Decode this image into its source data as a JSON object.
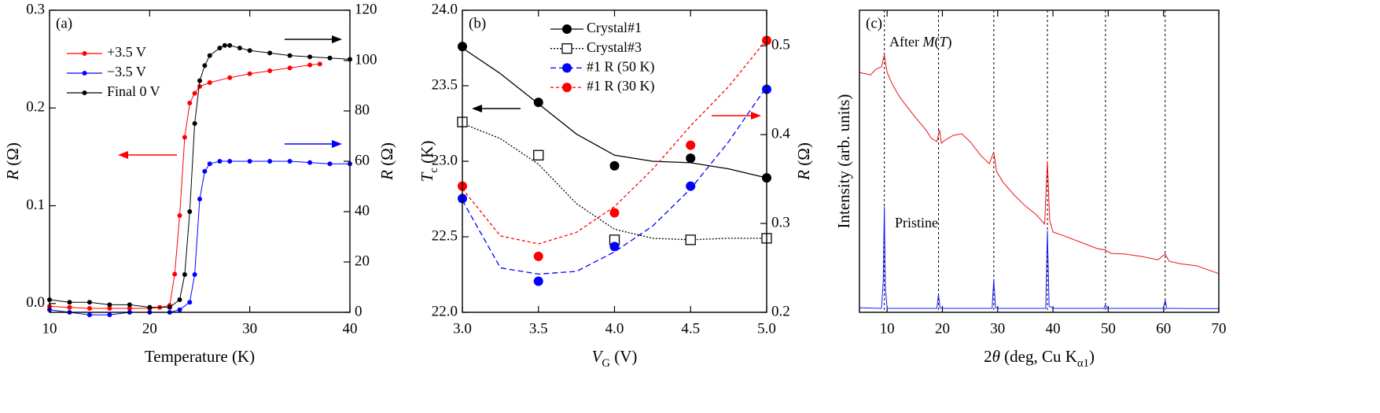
{
  "chart_data": [
    {
      "type": "line",
      "label": "(a)",
      "x_label": [
        {
          "text": "Temperature (K)"
        }
      ],
      "y_label": [
        {
          "text": "R",
          "italic": true
        },
        {
          "text": " (Ω)"
        }
      ],
      "y2_label": [
        {
          "text": "R",
          "italic": true
        },
        {
          "text": " (Ω)"
        }
      ],
      "xlim": [
        10,
        40
      ],
      "xticks": [
        10,
        20,
        30,
        40
      ],
      "ylim": [
        -0.009,
        0.3
      ],
      "yticks": [
        {
          "value": 0,
          "label": "0.0"
        },
        0.1,
        0.2,
        0.3
      ],
      "y2lim": [
        0,
        120
      ],
      "y2ticks": [
        0,
        20,
        40,
        60,
        80,
        100,
        120
      ],
      "series": [
        {
          "name": "+3.5 V",
          "color": "#ff0000",
          "axis": "y",
          "marker": "circle",
          "x": [
            10,
            12,
            14,
            16,
            18,
            20,
            21,
            22,
            22.5,
            23,
            23.5,
            24,
            24.5,
            25,
            26,
            28,
            30,
            32,
            34,
            36,
            37
          ],
          "values": [
            -0.003,
            -0.004,
            -0.005,
            -0.005,
            -0.005,
            -0.005,
            -0.004,
            -0.002,
            0.03,
            0.09,
            0.17,
            0.205,
            0.215,
            0.222,
            0.226,
            0.231,
            0.235,
            0.238,
            0.241,
            0.244,
            0.245
          ]
        },
        {
          "name": "−3.5 V",
          "color": "#0000ff",
          "axis": "y2",
          "marker": "circle",
          "x": [
            10,
            12,
            14,
            16,
            18,
            20,
            22,
            23,
            24,
            24.5,
            25,
            25.5,
            26,
            27,
            28,
            30,
            32,
            34,
            36,
            38,
            40
          ],
          "values": [
            1,
            0,
            -1,
            -1,
            0,
            0,
            0,
            1,
            4,
            15,
            45,
            56,
            59,
            60,
            60,
            60,
            60,
            60,
            59.5,
            59,
            59
          ]
        },
        {
          "name": "Final 0 V",
          "color": "#000000",
          "axis": "y2",
          "marker": "circle",
          "x": [
            10,
            12,
            14,
            16,
            18,
            20,
            22,
            23,
            23.5,
            24,
            24.5,
            25,
            25.5,
            26,
            27,
            27.5,
            28,
            29,
            30,
            32,
            34,
            36,
            38,
            40
          ],
          "values": [
            5,
            4,
            4,
            3,
            3,
            2,
            2,
            5,
            15,
            40,
            75,
            92,
            98,
            102,
            105,
            106,
            106,
            105,
            104,
            103,
            102,
            101.5,
            101,
            100.5
          ]
        }
      ]
    },
    {
      "type": "scatter",
      "label": "(b)",
      "x_label": [
        {
          "text": "V",
          "italic": true
        },
        {
          "text": "G",
          "sub": true
        },
        {
          "text": " (V)"
        }
      ],
      "y_label": [
        {
          "text": "T",
          "italic": true
        },
        {
          "text": "c",
          "sub": true
        },
        {
          "text": " (K)"
        }
      ],
      "y2_label": [
        {
          "text": "R",
          "italic": true
        },
        {
          "text": " (Ω)"
        }
      ],
      "xlim": [
        3,
        5
      ],
      "xticks": [
        {
          "value": 3,
          "label": "3.0"
        },
        3.5,
        {
          "value": 4,
          "label": "4.0"
        },
        4.5,
        {
          "value": 5,
          "label": "5.0"
        }
      ],
      "ylim": [
        22,
        24
      ],
      "yticks": [
        {
          "value": 22,
          "label": "22.0"
        },
        22.5,
        {
          "value": 23,
          "label": "23.0"
        },
        23.5,
        {
          "value": 24,
          "label": "24.0"
        }
      ],
      "y2lim": [
        0.2,
        0.54
      ],
      "y2ticks": [
        0.2,
        0.3,
        0.4,
        0.5
      ],
      "series": [
        {
          "name": "Crystal#1",
          "color": "#000000",
          "axis": "y",
          "marker": "circle",
          "line": "solid",
          "x": [
            3,
            3.5,
            4,
            4.5,
            5
          ],
          "values": [
            23.76,
            23.39,
            22.97,
            23.02,
            22.89
          ],
          "fit_x": [
            3,
            3.25,
            3.5,
            3.75,
            4,
            4.25,
            4.5,
            4.75,
            5
          ],
          "fit": [
            23.75,
            23.58,
            23.38,
            23.18,
            23.04,
            23.0,
            22.99,
            22.95,
            22.89
          ]
        },
        {
          "name": "Crystal#3",
          "color": "#000000",
          "axis": "y",
          "marker": "open-square",
          "line": "dotted",
          "x": [
            3,
            3.5,
            4,
            4.5,
            5
          ],
          "values": [
            23.26,
            23.04,
            22.48,
            22.48,
            22.49
          ],
          "fit_x": [
            3,
            3.25,
            3.5,
            3.75,
            4,
            4.25,
            4.5,
            4.75,
            5
          ],
          "fit": [
            23.25,
            23.15,
            22.98,
            22.72,
            22.55,
            22.49,
            22.48,
            22.49,
            22.49
          ]
        },
        {
          "name": "#1 R (50 K)",
          "color": "#0000ff",
          "axis": "y2",
          "marker": "circle",
          "line": "dashed",
          "x": [
            3,
            3.5,
            4,
            4.5,
            5
          ],
          "values": [
            0.328,
            0.235,
            0.274,
            0.342,
            0.451
          ],
          "fit_x": [
            3,
            3.25,
            3.5,
            3.75,
            4,
            4.25,
            4.5,
            4.75,
            5
          ],
          "fit": [
            0.326,
            0.25,
            0.243,
            0.246,
            0.268,
            0.297,
            0.339,
            0.392,
            0.454
          ]
        },
        {
          "name": "#1 R (30 K)",
          "color": "#ff0000",
          "axis": "y2",
          "marker": "circle",
          "line": "short-dashed",
          "x": [
            3,
            3.5,
            4,
            4.5,
            5
          ],
          "values": [
            0.342,
            0.263,
            0.312,
            0.388,
            0.506
          ],
          "fit_x": [
            3,
            3.25,
            3.5,
            3.75,
            4,
            4.25,
            4.5,
            4.75,
            5
          ],
          "fit": [
            0.339,
            0.286,
            0.277,
            0.29,
            0.319,
            0.361,
            0.41,
            0.454,
            0.507
          ]
        }
      ]
    },
    {
      "type": "line",
      "label": "(c)",
      "x_label": [
        {
          "text": "2"
        },
        {
          "text": "θ",
          "italic": true
        },
        {
          "text": " (deg, Cu K"
        },
        {
          "text": "α1",
          "sub": true
        },
        {
          "text": ")"
        }
      ],
      "y_label": [
        {
          "text": "Intensity (arb. units)"
        }
      ],
      "xlim": [
        5,
        70
      ],
      "xticks": [
        10,
        20,
        30,
        40,
        50,
        60,
        70
      ],
      "ylim": [
        0,
        1
      ],
      "reference_lines": [
        9.5,
        19.3,
        29.3,
        39,
        49.5,
        60.3
      ],
      "annotations": [
        [
          {
            "text": "After "
          },
          {
            "text": "M",
            "italic": true
          },
          {
            "text": "("
          },
          {
            "text": "T",
            "italic": true
          },
          {
            "text": ")"
          }
        ],
        [
          {
            "text": "Pristine"
          }
        ]
      ],
      "series": [
        {
          "color": "#ee1111",
          "axis": "y",
          "marker": "none",
          "x": [
            5,
            7,
            8,
            9,
            9.5,
            10,
            10.5,
            11,
            12,
            13,
            15,
            17,
            18,
            19,
            19.5,
            19.8,
            20.5,
            22,
            23.5,
            25,
            27,
            28.5,
            29.3,
            29.8,
            31,
            33,
            35,
            37,
            38.5,
            39,
            39.4,
            40,
            42,
            45,
            48,
            49.5,
            50.5,
            53,
            56,
            59,
            60.3,
            61,
            63,
            66,
            70
          ],
          "values": [
            0.794,
            0.786,
            0.805,
            0.813,
            0.852,
            0.794,
            0.773,
            0.753,
            0.721,
            0.695,
            0.648,
            0.604,
            0.576,
            0.565,
            0.604,
            0.56,
            0.57,
            0.586,
            0.591,
            0.565,
            0.518,
            0.492,
            0.531,
            0.466,
            0.43,
            0.388,
            0.352,
            0.323,
            0.292,
            0.5,
            0.305,
            0.266,
            0.253,
            0.232,
            0.211,
            0.206,
            0.195,
            0.193,
            0.185,
            0.174,
            0.193,
            0.169,
            0.161,
            0.154,
            0.128
          ]
        },
        {
          "color": "#1a1aff",
          "axis": "y",
          "marker": "none",
          "x": [
            5,
            9,
            9.3,
            9.5,
            9.7,
            10,
            19,
            19.3,
            19.6,
            20,
            29,
            29.3,
            29.6,
            30,
            38.7,
            39,
            39.3,
            40,
            49.2,
            49.5,
            49.8,
            50,
            60,
            60.3,
            60.6,
            61,
            70
          ],
          "values": [
            0.015,
            0.013,
            0.1,
            0.35,
            0.08,
            0.013,
            0.013,
            0.06,
            0.014,
            0.013,
            0.013,
            0.11,
            0.015,
            0.013,
            0.013,
            0.27,
            0.02,
            0.013,
            0.013,
            0.025,
            0.013,
            0.013,
            0.013,
            0.04,
            0.013,
            0.013,
            0.012
          ]
        }
      ]
    }
  ]
}
